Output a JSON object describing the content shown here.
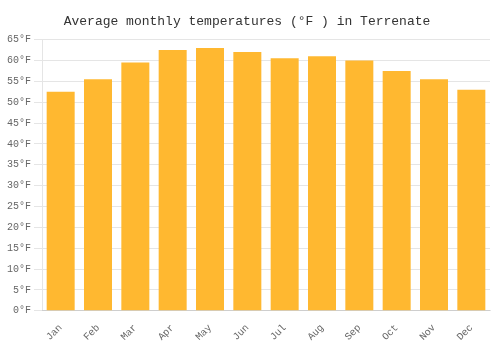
{
  "chart_data": {
    "type": "bar",
    "title": "Average monthly temperatures (°F ) in Terrenate",
    "categories": [
      "Jan",
      "Feb",
      "Mar",
      "Apr",
      "May",
      "Jun",
      "Jul",
      "Aug",
      "Sep",
      "Oct",
      "Nov",
      "Dec"
    ],
    "values": [
      52.5,
      55.5,
      59.5,
      62.5,
      63.0,
      62.0,
      60.5,
      61.0,
      60.0,
      57.5,
      55.5,
      53.0
    ],
    "color": "#FFB830",
    "ylim": [
      0,
      65
    ],
    "yticks": [
      {
        "value": 0,
        "label": "0°F"
      },
      {
        "value": 5,
        "label": "5°F"
      },
      {
        "value": 10,
        "label": "10°F"
      },
      {
        "value": 15,
        "label": "15°F"
      },
      {
        "value": 20,
        "label": "20°F"
      },
      {
        "value": 25,
        "label": "25°F"
      },
      {
        "value": 30,
        "label": "30°F"
      },
      {
        "value": 35,
        "label": "35°F"
      },
      {
        "value": 40,
        "label": "40°F"
      },
      {
        "value": 45,
        "label": "45°F"
      },
      {
        "value": 50,
        "label": "50°F"
      },
      {
        "value": 55,
        "label": "55°F"
      },
      {
        "value": 60,
        "label": "60°F"
      },
      {
        "value": 65,
        "label": "65°F"
      }
    ],
    "grid": true
  }
}
